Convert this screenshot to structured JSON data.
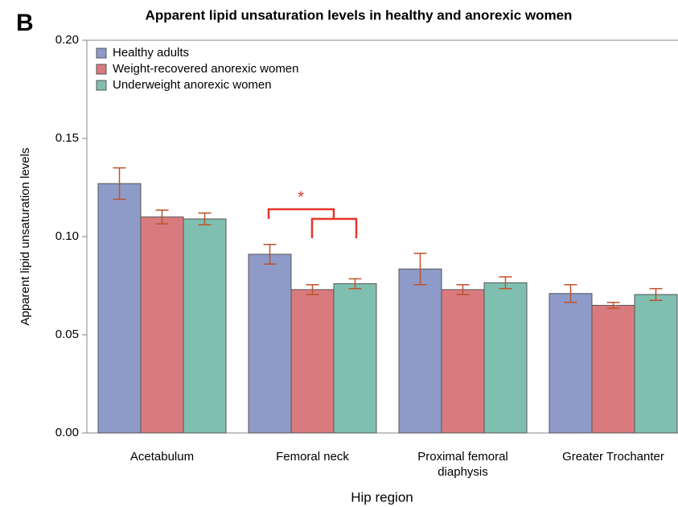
{
  "panel_label": "B",
  "chart_data": {
    "type": "bar",
    "title": "Apparent lipid unsaturation levels in healthy and anorexic women",
    "xlabel": "Hip region",
    "ylabel": "Apparent lipid unsaturation levels",
    "categories": [
      "Acetabulum",
      "Femoral neck",
      "Proximal femoral diaphysis",
      "Greater Trochanter"
    ],
    "series": [
      {
        "name": "Healthy adults",
        "color": "#8e9bc8",
        "values": [
          0.127,
          0.091,
          0.0835,
          0.071
        ],
        "errors": [
          0.008,
          0.005,
          0.008,
          0.0045
        ]
      },
      {
        "name": "Weight-recovered anorexic women",
        "color": "#d97b7e",
        "values": [
          0.11,
          0.073,
          0.073,
          0.065
        ],
        "errors": [
          0.0035,
          0.0025,
          0.0025,
          0.0015
        ]
      },
      {
        "name": "Underweight anorexic women",
        "color": "#7fbfb0",
        "values": [
          0.109,
          0.076,
          0.0765,
          0.0705
        ],
        "errors": [
          0.003,
          0.0025,
          0.003,
          0.003
        ]
      }
    ],
    "ylim": [
      0,
      0.2
    ],
    "yticks": [
      {
        "value": 0,
        "label": "0.00"
      },
      {
        "value": 0.05,
        "label": "0.05"
      },
      {
        "value": 0.1,
        "label": "0.10"
      },
      {
        "value": 0.15,
        "label": "0.15"
      },
      {
        "value": 0.2,
        "label": "0.20"
      }
    ],
    "legend": "top-left",
    "annotation": "*"
  }
}
